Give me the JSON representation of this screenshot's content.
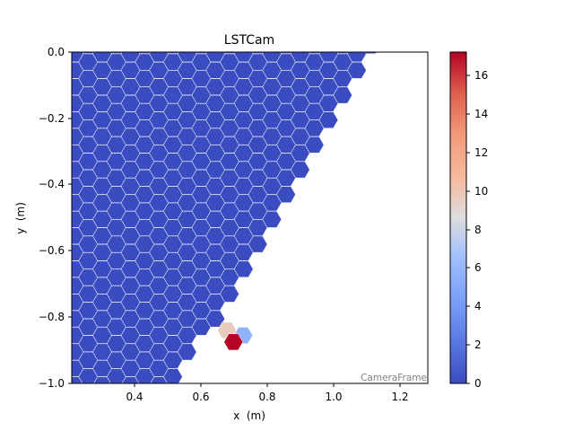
{
  "chart_data": {
    "type": "heatmap",
    "title": "LSTCam",
    "xlabel": "x  (m)",
    "ylabel": "y  (m)",
    "xlim": [
      0.2,
      1.29
    ],
    "ylim": [
      -1.0,
      0.0
    ],
    "xticks": [
      "0.4",
      "0.6",
      "0.8",
      "1.0",
      "1.2"
    ],
    "yticks": [
      "0.0",
      "−0.2",
      "−0.4",
      "−0.6",
      "−0.8",
      "−1.0"
    ],
    "frame_label": "CameraFrame",
    "colormap": "coolwarm",
    "colorbar": {
      "range": [
        0,
        17.2
      ],
      "ticks": [
        "0",
        "2",
        "4",
        "6",
        "8",
        "10",
        "12",
        "14",
        "16"
      ]
    },
    "pixel_pitch_m": 0.05,
    "background_value": 0,
    "highlighted_pixels": [
      {
        "x": 0.675,
        "y": -0.84,
        "value": 9.6
      },
      {
        "x": 0.725,
        "y": -0.855,
        "value": 5.6
      },
      {
        "x": 0.695,
        "y": -0.875,
        "value": 17.2
      }
    ],
    "colors": {
      "low": "#3b4cc0",
      "mid": "#dddddd",
      "high": "#b40426",
      "hex_edge": "#ffffff",
      "frame_label": "#808080"
    }
  }
}
